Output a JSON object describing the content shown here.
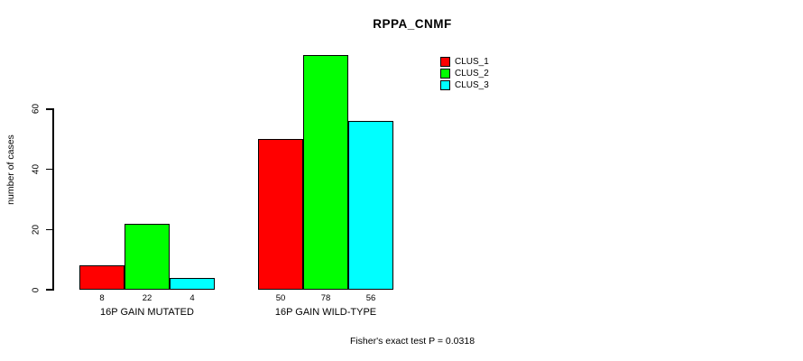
{
  "chart_data": {
    "type": "bar",
    "title": "RPPA_CNMF",
    "ylabel": "number of cases",
    "yticks": [
      0,
      20,
      40,
      60
    ],
    "ylim": [
      0,
      78
    ],
    "grid": false,
    "legend_position": "top-right",
    "categories": [
      "16P GAIN MUTATED",
      "16P GAIN WILD-TYPE"
    ],
    "series": [
      {
        "name": "CLUS_1",
        "color": "#ff0000",
        "values": [
          8,
          50
        ]
      },
      {
        "name": "CLUS_2",
        "color": "#00ff00",
        "values": [
          22,
          78
        ]
      },
      {
        "name": "CLUS_3",
        "color": "#00ffff",
        "values": [
          4,
          56
        ]
      }
    ],
    "bar_value_labels": [
      [
        "8",
        "22",
        "4"
      ],
      [
        "50",
        "78",
        "56"
      ]
    ],
    "footer": "Fisher's exact test P = 0.0318"
  }
}
